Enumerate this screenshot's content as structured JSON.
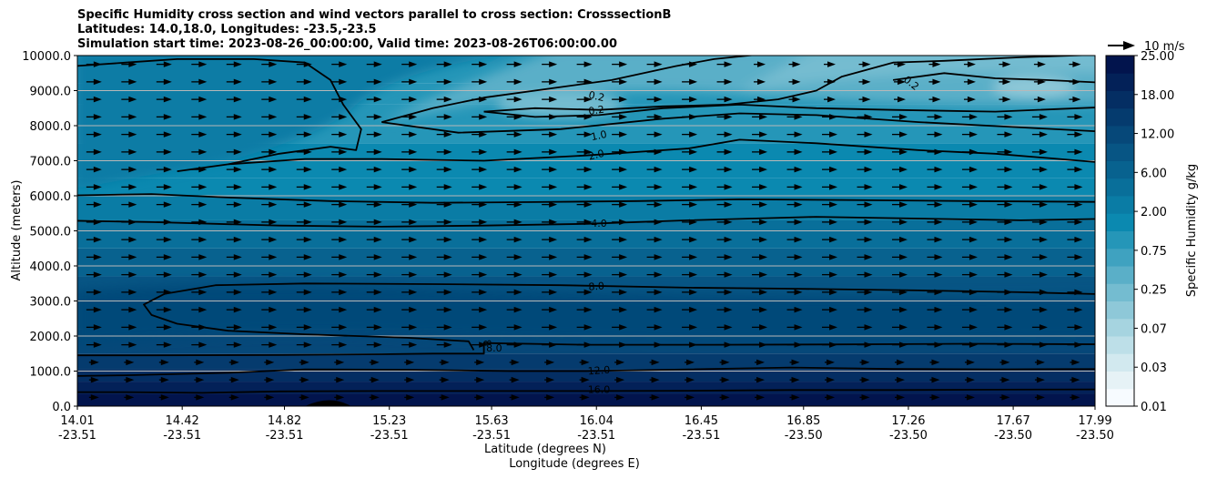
{
  "chart_data": {
    "type": "contour",
    "title_lines": [
      "Specific Humidity cross section and wind vectors parallel to cross section: CrosssectionB",
      "Latitudes: 14.0,18.0, Longitudes: -23.5,-23.5",
      "Simulation start time: 2023-08-26_00:00:00, Valid time: 2023-08-26T06:00:00.00"
    ],
    "ylabel": "Altitude (meters)",
    "xlabel_lines": [
      "Latitude (degrees N)",
      "Longitude (degrees E)"
    ],
    "ylim": [
      0,
      10000
    ],
    "yticks": [
      "0.0",
      "1000.0",
      "2000.0",
      "3000.0",
      "4000.0",
      "5000.0",
      "6000.0",
      "7000.0",
      "8000.0",
      "9000.0",
      "10000.0"
    ],
    "xticks": [
      {
        "lat": "14.01",
        "lon": "-23.51"
      },
      {
        "lat": "14.42",
        "lon": "-23.51"
      },
      {
        "lat": "14.82",
        "lon": "-23.51"
      },
      {
        "lat": "15.23",
        "lon": "-23.51"
      },
      {
        "lat": "15.63",
        "lon": "-23.51"
      },
      {
        "lat": "16.04",
        "lon": "-23.51"
      },
      {
        "lat": "16.45",
        "lon": "-23.51"
      },
      {
        "lat": "16.85",
        "lon": "-23.50"
      },
      {
        "lat": "17.26",
        "lon": "-23.50"
      },
      {
        "lat": "17.67",
        "lon": "-23.50"
      },
      {
        "lat": "17.99",
        "lon": "-23.50"
      }
    ],
    "grid": "horizontal",
    "colorbar": {
      "label": "Specific Humidity g/kg",
      "tick_labels": [
        "0.01",
        "0.03",
        "0.07",
        "0.25",
        "0.75",
        "2.00",
        "6.00",
        "12.00",
        "18.00",
        "25.00"
      ],
      "levels": 20,
      "colors": [
        "#f7fbff",
        "#e6f2f6",
        "#d2e9ef",
        "#bddfe8",
        "#a6d4e0",
        "#8ec8d8",
        "#74bcd0",
        "#5aafc8",
        "#3fa2c0",
        "#2596b8",
        "#0b89b0",
        "#0a7ca5",
        "#096f9a",
        "#08628f",
        "#075584",
        "#064879",
        "#053b6e",
        "#042e63",
        "#032158",
        "#02144d"
      ]
    },
    "quiver_key": {
      "label": "10 m/s"
    },
    "contour_labels": [
      {
        "text": "0.2",
        "lat": 16.04,
        "alt": 8820,
        "rot": 12
      },
      {
        "text": "0.2",
        "lat": 16.04,
        "alt": 8420,
        "rot": -8
      },
      {
        "text": "1.0",
        "lat": 16.05,
        "alt": 7700,
        "rot": -12
      },
      {
        "text": "2.0",
        "lat": 16.04,
        "alt": 7150,
        "rot": -14
      },
      {
        "text": "4.0",
        "lat": 16.05,
        "alt": 5200,
        "rot": 0
      },
      {
        "text": "8.0",
        "lat": 16.04,
        "alt": 3400,
        "rot": -4
      },
      {
        "text": "8.0",
        "lat": 15.64,
        "alt": 1630,
        "rot": 0
      },
      {
        "text": "8",
        "lat": 15.61,
        "alt": 1800,
        "rot": 80
      },
      {
        "text": "12.0",
        "lat": 16.05,
        "alt": 1000,
        "rot": -4
      },
      {
        "text": "16.0",
        "lat": 16.05,
        "alt": 450,
        "rot": 0
      },
      {
        "text": "0.2",
        "lat": 17.27,
        "alt": 9200,
        "rot": 38
      }
    ]
  }
}
